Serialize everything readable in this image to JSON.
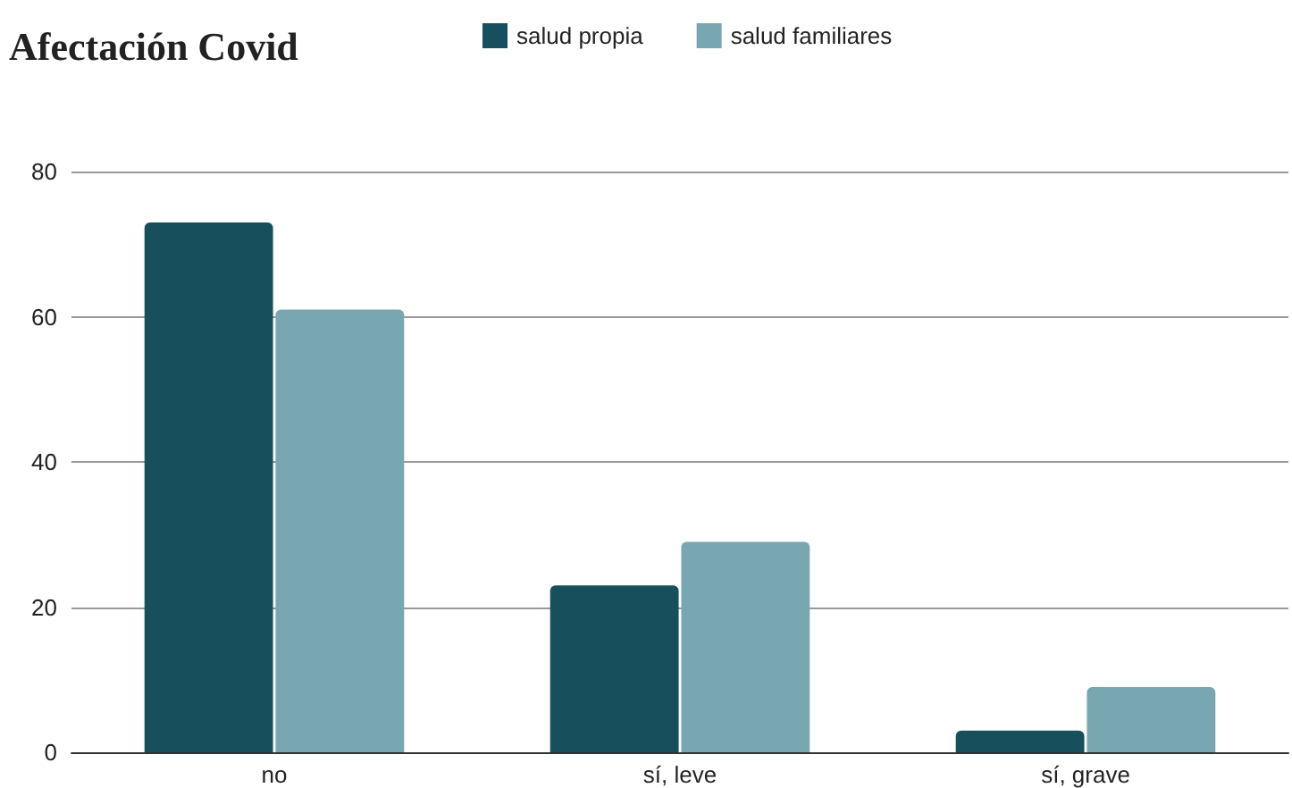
{
  "chart_data": {
    "type": "bar",
    "title": "Afectación Covid",
    "categories": [
      "no",
      "sí, leve",
      "sí, grave"
    ],
    "series": [
      {
        "name": "salud propia",
        "color": "#17505c",
        "values": [
          73,
          23,
          3
        ]
      },
      {
        "name": "salud familiares",
        "color": "#78a7b2",
        "values": [
          61,
          29,
          9
        ]
      }
    ],
    "ylim": [
      0,
      80
    ],
    "yticks": [
      0,
      20,
      40,
      60,
      80
    ],
    "grid": "y",
    "legend": "top"
  }
}
